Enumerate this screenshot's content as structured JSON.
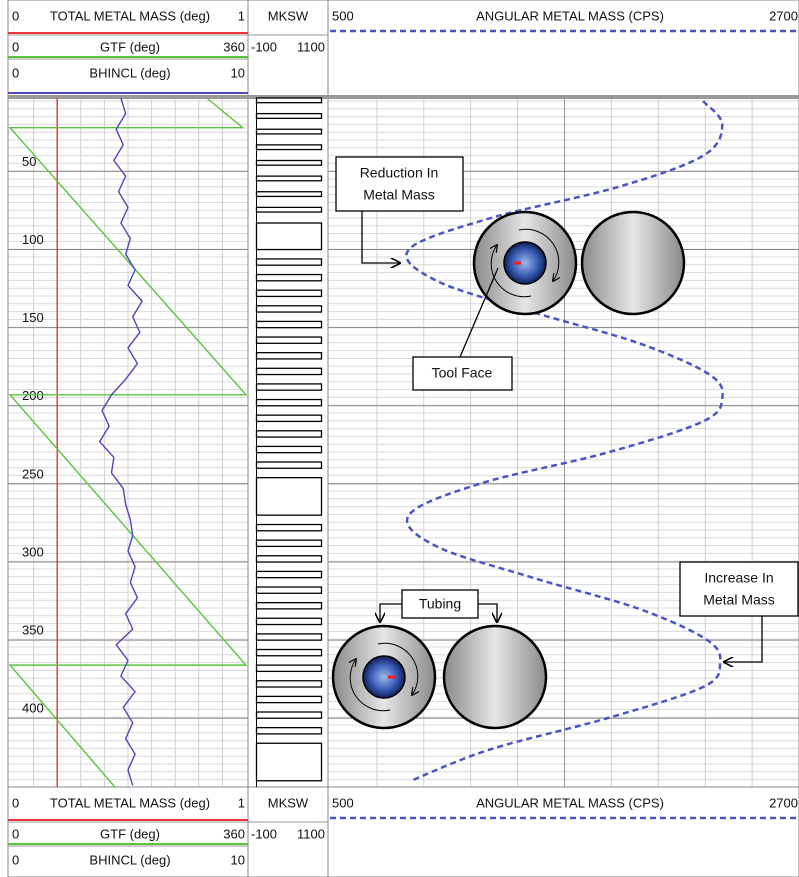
{
  "chart_data": {
    "type": "well-log",
    "scales": {
      "total_metal_mass": [
        0,
        1
      ],
      "gtf": [
        0,
        360
      ],
      "bhincl": [
        0,
        10
      ],
      "mksw": [
        -100,
        1100
      ],
      "angular_metal_mass": [
        500,
        2700
      ]
    },
    "headers": {
      "total_metal_mass": "TOTAL METAL MASS (deg)",
      "gtf": "GTF (deg)",
      "bhincl": "BHINCL (deg)",
      "mksw": "MKSW",
      "angular_metal_mass": "ANGULAR METAL MASS (CPS)"
    },
    "depth_range": [
      3,
      444
    ],
    "depth_ticks": [
      50,
      100,
      150,
      200,
      250,
      300,
      350,
      400
    ],
    "curves": {
      "total_metal_mass": {
        "color": "#e8343a",
        "depth": [
          3,
          444
        ],
        "values": [
          0.2,
          0.2
        ]
      },
      "gtf": {
        "color": "#5cc43c",
        "depth": [
          3,
          22,
          22,
          193,
          193,
          366,
          366,
          444
        ],
        "values": [
          300,
          355,
          0,
          360,
          0,
          360,
          0,
          160
        ]
      },
      "bhincl": {
        "color": "#4a4ab8",
        "depth": [
          3,
          13,
          23,
          33,
          43,
          53,
          63,
          73,
          83,
          93,
          103,
          113,
          123,
          133,
          143,
          153,
          163,
          173,
          183,
          193,
          203,
          213,
          223,
          233,
          243,
          253,
          263,
          273,
          283,
          293,
          303,
          313,
          323,
          333,
          343,
          353,
          363,
          373,
          383,
          393,
          403,
          413,
          423,
          433,
          443
        ],
        "values": [
          4.7,
          4.9,
          4.5,
          4.8,
          4.4,
          4.9,
          4.6,
          5.0,
          4.7,
          5.1,
          4.9,
          5.3,
          5.0,
          5.6,
          5.2,
          5.5,
          5.0,
          5.4,
          4.9,
          4.3,
          3.9,
          4.2,
          3.8,
          4.4,
          4.3,
          4.8,
          4.9,
          5.1,
          5.2,
          5.0,
          5.3,
          5.1,
          5.4,
          4.9,
          5.2,
          4.5,
          5.0,
          4.7,
          5.3,
          4.8,
          5.2,
          4.9,
          5.3,
          5.0,
          5.2
        ]
      },
      "angular_metal_mass": {
        "color": "#4a57c0",
        "depth": [
          5,
          20,
          40,
          60,
          80,
          100,
          120,
          140,
          160,
          180,
          195,
          210,
          230,
          250,
          270,
          290,
          310,
          330,
          350,
          365,
          380,
          400,
          420,
          440
        ],
        "values": [
          2250,
          2340,
          2250,
          1850,
          1250,
          870,
          1000,
          1450,
          1950,
          2280,
          2340,
          2250,
          1800,
          1200,
          870,
          1000,
          1450,
          1950,
          2270,
          2330,
          2250,
          1800,
          1250,
          880
        ]
      }
    },
    "mksw": {
      "low": 0,
      "high": 1000,
      "intervals": [
        [
          3,
          6
        ],
        [
          13,
          16
        ],
        [
          23,
          26
        ],
        [
          33,
          36
        ],
        [
          43,
          46
        ],
        [
          53,
          56
        ],
        [
          63,
          66
        ],
        [
          73,
          76
        ],
        [
          83,
          100
        ],
        [
          106,
          110
        ],
        [
          116,
          120
        ],
        [
          126,
          130
        ],
        [
          136,
          140
        ],
        [
          146,
          150
        ],
        [
          156,
          160
        ],
        [
          166,
          170
        ],
        [
          176,
          180
        ],
        [
          186,
          190
        ],
        [
          196,
          200
        ],
        [
          206,
          210
        ],
        [
          216,
          220
        ],
        [
          226,
          230
        ],
        [
          236,
          240
        ],
        [
          246,
          270
        ],
        [
          276,
          280
        ],
        [
          286,
          290
        ],
        [
          296,
          300
        ],
        [
          306,
          310
        ],
        [
          316,
          320
        ],
        [
          326,
          330
        ],
        [
          336,
          340
        ],
        [
          346,
          350
        ],
        [
          356,
          360
        ],
        [
          366,
          370
        ],
        [
          376,
          380
        ],
        [
          386,
          390
        ],
        [
          396,
          400
        ],
        [
          406,
          410
        ],
        [
          416,
          440
        ]
      ]
    },
    "annotations": {
      "reduction": [
        "Reduction In",
        "Metal Mass"
      ],
      "tool_face": "Tool Face",
      "tubing": "Tubing",
      "increase": [
        "Increase In",
        "Metal Mass"
      ]
    }
  }
}
